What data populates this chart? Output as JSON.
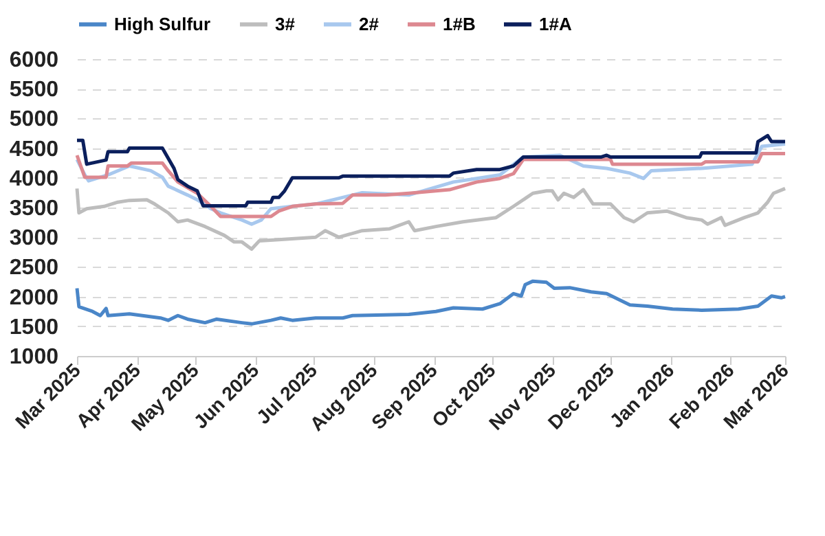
{
  "chart_data": {
    "type": "line",
    "legend": "top",
    "grid": "y",
    "ylim": [
      1000,
      6000
    ],
    "yticks": [
      1000,
      1500,
      2000,
      2500,
      3000,
      3500,
      4000,
      4500,
      5000,
      5500,
      6000
    ],
    "xlim": [
      "2025-03-01",
      "2026-03-01"
    ],
    "xticks": [
      {
        "value": "2025-03-01",
        "label": "Mar 2025"
      },
      {
        "value": "2025-04-01",
        "label": "Apr 2025"
      },
      {
        "value": "2025-05-01",
        "label": "May 2025"
      },
      {
        "value": "2025-06-01",
        "label": "Jun 2025"
      },
      {
        "value": "2025-07-01",
        "label": "Jul 2025"
      },
      {
        "value": "2025-08-01",
        "label": "Aug 2025"
      },
      {
        "value": "2025-09-01",
        "label": "Sep 2025"
      },
      {
        "value": "2025-10-01",
        "label": "Oct 2025"
      },
      {
        "value": "2025-11-01",
        "label": "Nov 2025"
      },
      {
        "value": "2025-12-01",
        "label": "Dec 2025"
      },
      {
        "value": "2026-01-01",
        "label": "Jan 2026"
      },
      {
        "value": "2026-02-01",
        "label": "Feb 2026"
      },
      {
        "value": "2026-03-01",
        "label": "Mar 2026"
      }
    ],
    "series": [
      {
        "name": "High Sulfur",
        "color": "#4a86c8",
        "x": [
          "2025-03-01",
          "2025-03-02",
          "2025-03-09",
          "2025-03-13",
          "2025-03-16",
          "2025-03-17",
          "2025-03-28",
          "2025-04-13",
          "2025-04-17",
          "2025-04-22",
          "2025-04-27",
          "2025-05-06",
          "2025-05-12",
          "2025-05-25",
          "2025-05-30",
          "2025-06-09",
          "2025-06-14",
          "2025-06-20",
          "2025-07-02",
          "2025-07-16",
          "2025-07-21",
          "2025-08-19",
          "2025-09-02",
          "2025-09-11",
          "2025-09-26",
          "2025-10-05",
          "2025-10-12",
          "2025-10-16",
          "2025-10-18",
          "2025-10-22",
          "2025-10-29",
          "2025-11-02",
          "2025-11-10",
          "2025-11-21",
          "2025-11-29",
          "2025-12-11",
          "2025-12-20",
          "2026-01-02",
          "2026-01-17",
          "2026-02-05",
          "2026-02-15",
          "2026-02-22",
          "2026-02-27",
          "2026-03-01"
        ],
        "values": [
          2140,
          1830,
          1750,
          1680,
          1800,
          1680,
          1710,
          1640,
          1600,
          1680,
          1620,
          1560,
          1620,
          1560,
          1540,
          1600,
          1640,
          1600,
          1640,
          1640,
          1680,
          1700,
          1750,
          1810,
          1790,
          1880,
          2050,
          2010,
          2200,
          2260,
          2240,
          2140,
          2150,
          2080,
          2050,
          1860,
          1840,
          1790,
          1770,
          1790,
          1840,
          2010,
          1980,
          2000
        ]
      },
      {
        "name": "3#",
        "color": "#bdbdbd",
        "x": [
          "2025-03-01",
          "2025-03-02",
          "2025-03-06",
          "2025-03-15",
          "2025-03-22",
          "2025-03-28",
          "2025-04-06",
          "2025-04-10",
          "2025-04-17",
          "2025-04-22",
          "2025-04-27",
          "2025-05-06",
          "2025-05-16",
          "2025-05-21",
          "2025-05-25",
          "2025-05-30",
          "2025-06-03",
          "2025-06-13",
          "2025-07-02",
          "2025-07-07",
          "2025-07-14",
          "2025-07-26",
          "2025-08-09",
          "2025-08-19",
          "2025-08-22",
          "2025-09-02",
          "2025-09-16",
          "2025-10-03",
          "2025-10-12",
          "2025-10-22",
          "2025-10-29",
          "2025-11-01",
          "2025-11-04",
          "2025-11-07",
          "2025-11-12",
          "2025-11-17",
          "2025-11-22",
          "2025-12-01",
          "2025-12-08",
          "2025-12-13",
          "2025-12-20",
          "2025-12-30",
          "2026-01-09",
          "2026-01-17",
          "2026-01-20",
          "2026-01-27",
          "2026-01-29",
          "2026-02-08",
          "2026-02-15",
          "2026-02-20",
          "2026-02-23",
          "2026-03-01"
        ],
        "values": [
          3820,
          3410,
          3480,
          3520,
          3590,
          3620,
          3630,
          3560,
          3410,
          3260,
          3290,
          3180,
          3030,
          2920,
          2920,
          2800,
          2940,
          2960,
          3000,
          3110,
          3000,
          3110,
          3140,
          3260,
          3110,
          3180,
          3260,
          3330,
          3520,
          3740,
          3780,
          3780,
          3630,
          3740,
          3670,
          3800,
          3560,
          3560,
          3330,
          3260,
          3410,
          3440,
          3330,
          3290,
          3220,
          3330,
          3200,
          3330,
          3410,
          3590,
          3740,
          3820
        ]
      },
      {
        "name": "2#",
        "color": "#a8c8ee",
        "x": [
          "2025-03-01",
          "2025-03-05",
          "2025-03-07",
          "2025-03-17",
          "2025-03-28",
          "2025-04-08",
          "2025-04-14",
          "2025-04-17",
          "2025-04-27",
          "2025-05-02",
          "2025-05-09",
          "2025-05-14",
          "2025-05-25",
          "2025-05-30",
          "2025-06-04",
          "2025-06-09",
          "2025-06-20",
          "2025-07-02",
          "2025-07-26",
          "2025-08-19",
          "2025-09-11",
          "2025-09-23",
          "2025-10-05",
          "2025-10-17",
          "2025-11-05",
          "2025-11-17",
          "2025-11-29",
          "2025-12-11",
          "2025-12-18",
          "2025-12-22",
          "2026-01-17",
          "2026-02-12",
          "2026-02-17",
          "2026-03-01"
        ],
        "values": [
          4310,
          4050,
          3950,
          4050,
          4200,
          4120,
          4010,
          3860,
          3710,
          3630,
          3480,
          3410,
          3290,
          3220,
          3290,
          3480,
          3520,
          3560,
          3750,
          3710,
          3930,
          3990,
          4050,
          4350,
          4380,
          4200,
          4160,
          4080,
          3990,
          4120,
          4160,
          4230,
          4530,
          4570
        ]
      },
      {
        "name": "1#B",
        "color": "#dd8890",
        "x": [
          "2025-03-01",
          "2025-03-05",
          "2025-03-16",
          "2025-03-17",
          "2025-03-27",
          "2025-03-29",
          "2025-04-14",
          "2025-04-17",
          "2025-04-22",
          "2025-05-02",
          "2025-05-09",
          "2025-05-14",
          "2025-06-09",
          "2025-06-13",
          "2025-06-20",
          "2025-07-02",
          "2025-07-16",
          "2025-07-21",
          "2025-08-07",
          "2025-08-19",
          "2025-09-09",
          "2025-09-23",
          "2025-10-05",
          "2025-10-12",
          "2025-10-17",
          "2025-12-01",
          "2025-12-02",
          "2026-01-17",
          "2026-01-19",
          "2026-02-15",
          "2026-02-17",
          "2026-03-01"
        ],
        "values": [
          4380,
          4010,
          4010,
          4200,
          4200,
          4250,
          4250,
          4120,
          3930,
          3740,
          3520,
          3350,
          3350,
          3440,
          3520,
          3560,
          3570,
          3710,
          3710,
          3740,
          3800,
          3930,
          3990,
          4070,
          4310,
          4310,
          4230,
          4230,
          4270,
          4270,
          4410,
          4410
        ]
      },
      {
        "name": "1#A",
        "color": "#0b1f5c",
        "x": [
          "2025-03-01",
          "2025-03-04",
          "2025-03-06",
          "2025-03-16",
          "2025-03-17",
          "2025-03-27",
          "2025-03-28",
          "2025-04-14",
          "2025-04-20",
          "2025-04-22",
          "2025-04-27",
          "2025-05-02",
          "2025-05-05",
          "2025-05-27",
          "2025-05-28",
          "2025-06-09",
          "2025-06-10",
          "2025-06-13",
          "2025-06-16",
          "2025-06-20",
          "2025-07-14",
          "2025-07-16",
          "2025-09-09",
          "2025-09-11",
          "2025-09-23",
          "2025-10-05",
          "2025-10-12",
          "2025-10-17",
          "2025-11-26",
          "2025-11-29",
          "2025-12-01",
          "2026-01-16",
          "2026-01-17",
          "2026-02-14",
          "2026-02-15",
          "2026-02-20",
          "2026-02-22",
          "2026-03-01"
        ],
        "values": [
          4630,
          4630,
          4230,
          4300,
          4440,
          4440,
          4500,
          4500,
          4160,
          3970,
          3860,
          3780,
          3530,
          3530,
          3590,
          3590,
          3670,
          3670,
          3780,
          4000,
          4000,
          4030,
          4030,
          4080,
          4140,
          4140,
          4200,
          4350,
          4350,
          4380,
          4350,
          4350,
          4420,
          4420,
          4610,
          4710,
          4610,
          4610
        ]
      }
    ]
  }
}
